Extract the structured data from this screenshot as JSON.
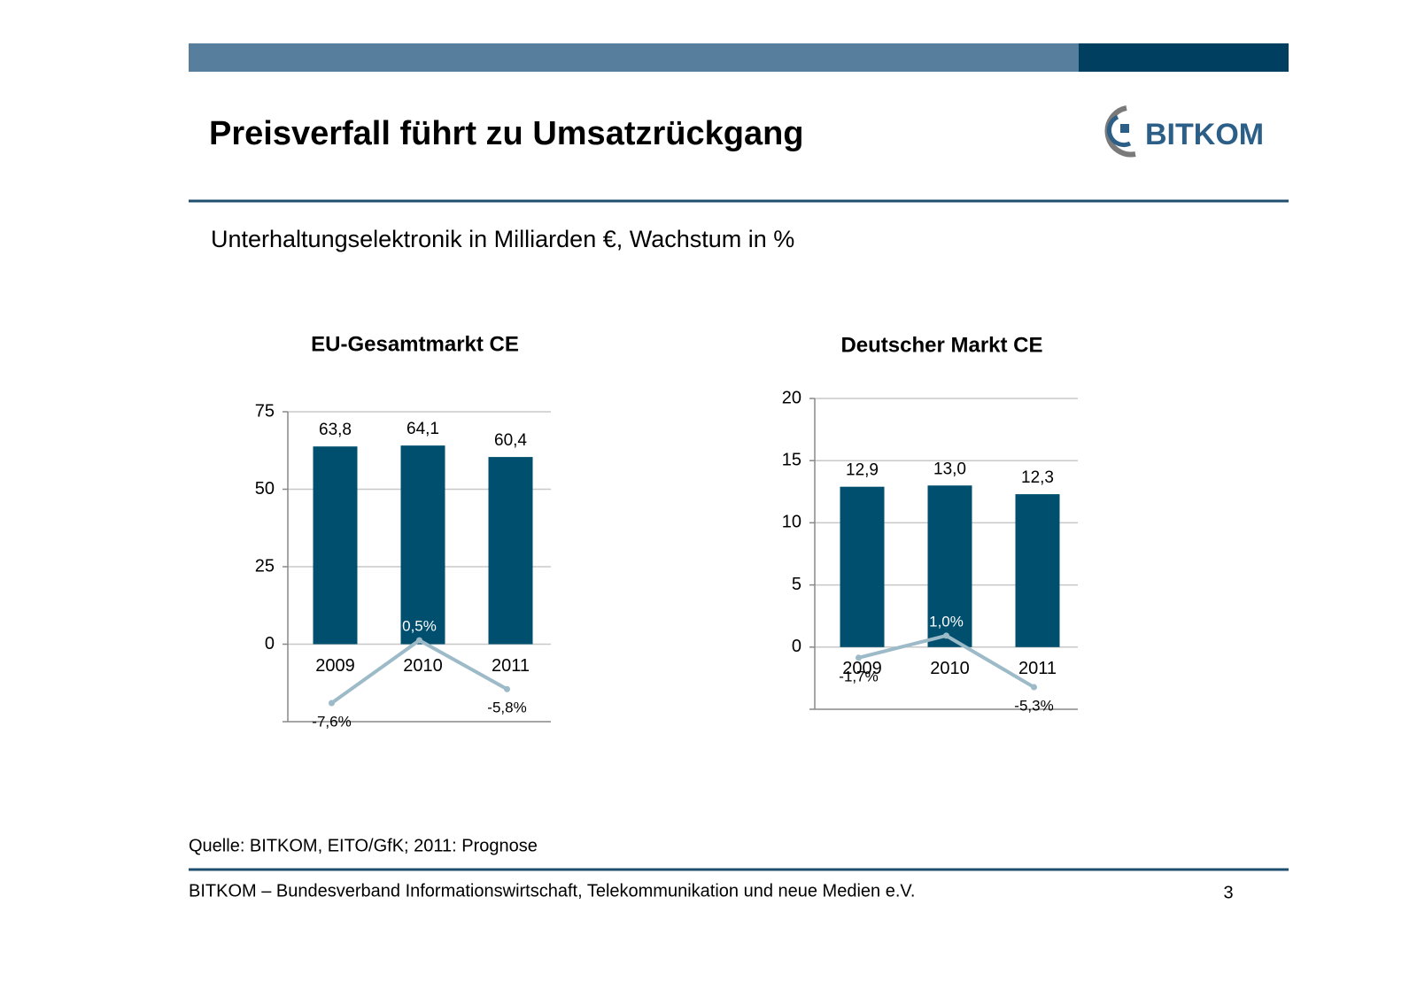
{
  "header": {
    "title": "Preisverfall führt zu Umsatzrückgang",
    "logo": "BITKOM"
  },
  "subtitle": "Unterhaltungselektronik in Milliarden €, Wachstum in %",
  "chart_data": [
    {
      "type": "bar",
      "title": "EU-Gesamtmarkt CE",
      "categories": [
        "2009",
        "2010",
        "2011"
      ],
      "series": [
        {
          "type": "bar",
          "color": "#004f6e",
          "values": [
            63.8,
            64.1,
            60.4
          ],
          "value_labels": [
            "63,8",
            "64,1",
            "60,4"
          ]
        },
        {
          "type": "line",
          "axis": "y2",
          "color": "#9cbac8",
          "values": [
            -7.6,
            0.5,
            -5.8
          ],
          "value_labels": [
            "-7,6%",
            "0,5%",
            "-5,8%"
          ]
        }
      ],
      "ylim": [
        -25,
        75
      ],
      "yticks": [
        0,
        25,
        50,
        75
      ],
      "y2lim": [
        -10,
        30
      ],
      "grid": true
    },
    {
      "type": "bar",
      "title": "Deutscher Markt CE",
      "categories": [
        "2009",
        "2010",
        "2011"
      ],
      "series": [
        {
          "type": "bar",
          "color": "#004f6e",
          "values": [
            12.9,
            13.0,
            12.3
          ],
          "value_labels": [
            "12,9",
            "13,0",
            "12,3"
          ]
        },
        {
          "type": "line",
          "axis": "y2",
          "color": "#9cbac8",
          "values": [
            -1.7,
            1.0,
            -5.3
          ],
          "value_labels": [
            "-1,7%",
            "1,0%",
            "-5,3%"
          ]
        }
      ],
      "ylim": [
        -5,
        20
      ],
      "yticks": [
        0,
        5,
        10,
        15,
        20
      ],
      "y2lim": [
        -8,
        30
      ],
      "grid": true
    }
  ],
  "source": "Quelle: BITKOM, EITO/GfK; 2011: Prognose",
  "footer": {
    "text": "BITKOM – Bundesverband Informationswirtschaft, Telekommunikation und neue Medien e.V.",
    "page": "3"
  }
}
